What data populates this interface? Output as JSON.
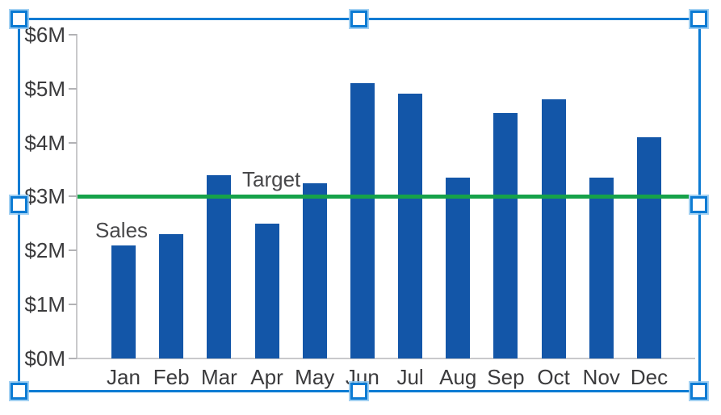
{
  "chart_data": {
    "type": "bar",
    "title": "",
    "xlabel": "",
    "ylabel": "",
    "categories": [
      "Jan",
      "Feb",
      "Mar",
      "Apr",
      "May",
      "Jun",
      "Jul",
      "Aug",
      "Sep",
      "Oct",
      "Nov",
      "Dec"
    ],
    "series": [
      {
        "name": "Sales",
        "values": [
          2.1,
          2.3,
          3.4,
          2.5,
          3.25,
          5.1,
          4.9,
          3.35,
          4.55,
          4.8,
          3.35,
          4.1
        ]
      }
    ],
    "target_line": {
      "label": "Target",
      "value": 3.0
    },
    "ytick_labels": [
      "$0M",
      "$1M",
      "$2M",
      "$3M",
      "$4M",
      "$5M",
      "$6M"
    ],
    "ytick_values": [
      0,
      1,
      2,
      3,
      4,
      5,
      6
    ],
    "ylim": [
      0,
      6
    ],
    "grid": false,
    "legend_position": "none",
    "annotations": [
      "Sales",
      "Target"
    ],
    "colors": {
      "bar": "#1356a8",
      "target_line": "#16a24a",
      "axis": "#c9c9cb",
      "tick": "#b2b2b5",
      "label_text": "#3b3b3d",
      "annotation_text": "#48484a"
    }
  },
  "selection": {
    "handle_count": 8,
    "border_color": "#0c7bd3",
    "handle_fill": "#ffffff",
    "handle_glow": "#90c8f0"
  }
}
